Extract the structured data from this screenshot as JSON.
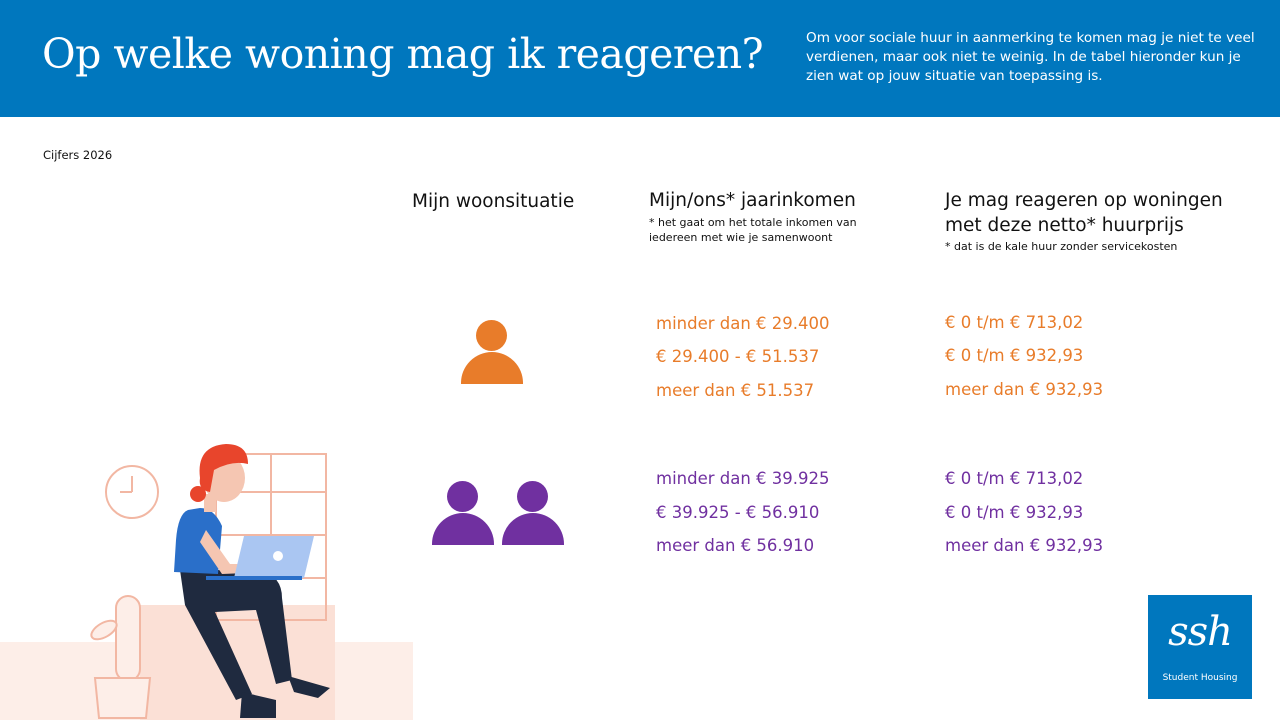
{
  "header": {
    "title": "Op welke woning mag ik reageren?",
    "intro": "Om voor sociale huur in aanmerking te komen mag je niet te veel verdienen, maar ook niet te weinig. In de tabel hieronder kun je zien wat op jouw situatie van toepassing is."
  },
  "year_label": "Cijfers 2026",
  "columns": {
    "situation": "Mijn woonsituatie",
    "income": "Mijn/ons* jaarinkomen",
    "income_note": "* het gaat om het totale inkomen van iedereen met wie je samenwoont",
    "rent_line1": "Je mag reageren op woningen",
    "rent_line2": "met deze netto* huurprijs",
    "rent_note": "* dat is de kale huur zonder servicekosten"
  },
  "single": {
    "icon": "single-person-icon",
    "color": "#e87c2a",
    "rows": [
      {
        "income": "minder dan € 29.400",
        "rent": "€ 0 t/m € 713,02"
      },
      {
        "income": "€ 29.400 - € 51.537",
        "rent": "€ 0 t/m € 932,93"
      },
      {
        "income": "meer dan € 51.537",
        "rent": "meer dan € 932,93"
      }
    ]
  },
  "couple": {
    "icon": "two-persons-icon",
    "color": "#7030a0",
    "rows": [
      {
        "income": "minder dan € 39.925",
        "rent": "€ 0 t/m € 713,02"
      },
      {
        "income": "€ 39.925 - € 56.910",
        "rent": "€ 0 t/m € 932,93"
      },
      {
        "income": "meer dan € 56.910",
        "rent": "meer dan € 932,93"
      }
    ]
  },
  "logo": {
    "mark": "ssh",
    "tagline": "Student Housing"
  },
  "colors": {
    "banner": "#0077be",
    "orange": "#e87c2a",
    "purple": "#7030a0"
  }
}
